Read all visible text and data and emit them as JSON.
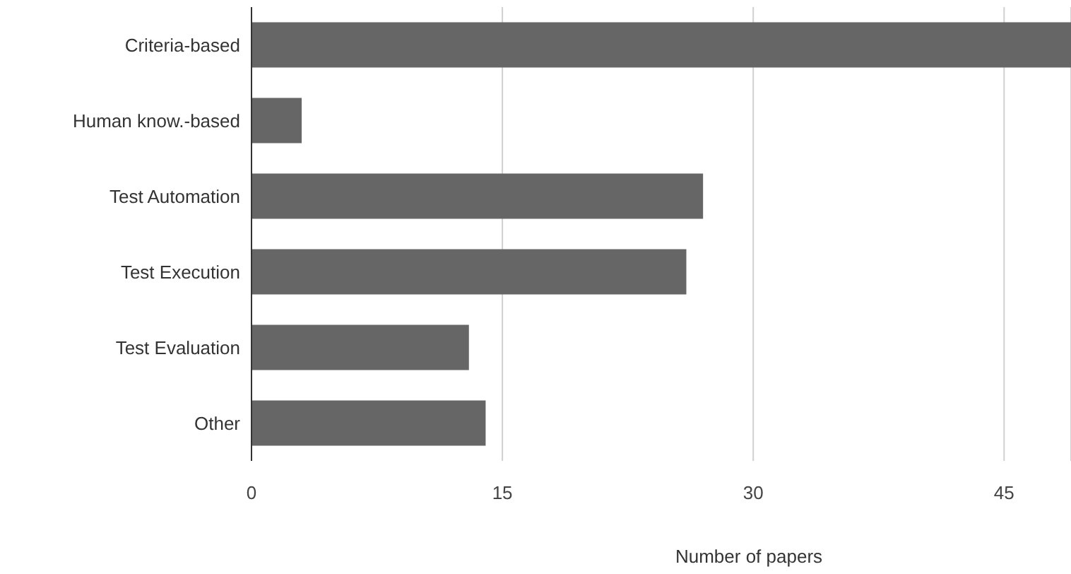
{
  "chart_data": {
    "type": "bar",
    "orientation": "horizontal",
    "xlabel": "Number of papers",
    "categories": [
      "Criteria-based",
      "Human know.-based",
      "Test Automation",
      "Test Execution",
      "Test Evaluation",
      "Other"
    ],
    "values": [
      49,
      3,
      27,
      26,
      13,
      14
    ],
    "color": "#666666",
    "xlim": [
      0,
      49
    ],
    "xticks": [
      0,
      15,
      30,
      45
    ],
    "grid": "x"
  }
}
